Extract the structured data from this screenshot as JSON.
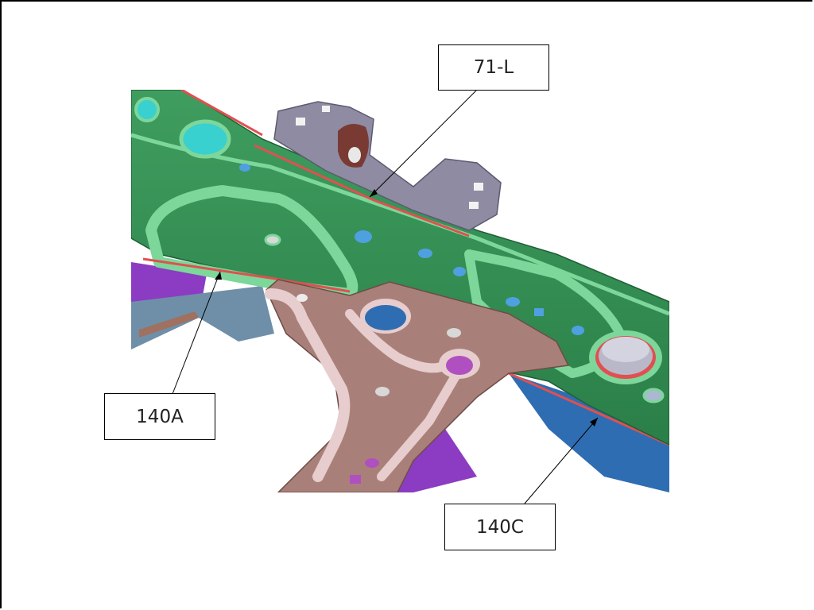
{
  "callouts": {
    "top": "71-L",
    "left": "140A",
    "right": "140C"
  },
  "colors": {
    "rail_green": "#2e8b4f",
    "rail_light_green": "#7dd69a",
    "plate_pink": "#a98079",
    "plate_light": "#e7cdcd",
    "bracket_gray": "#8f8ba2",
    "purple": "#8b3cc2",
    "blue": "#2f6db3",
    "seam_red": "#e05050"
  }
}
